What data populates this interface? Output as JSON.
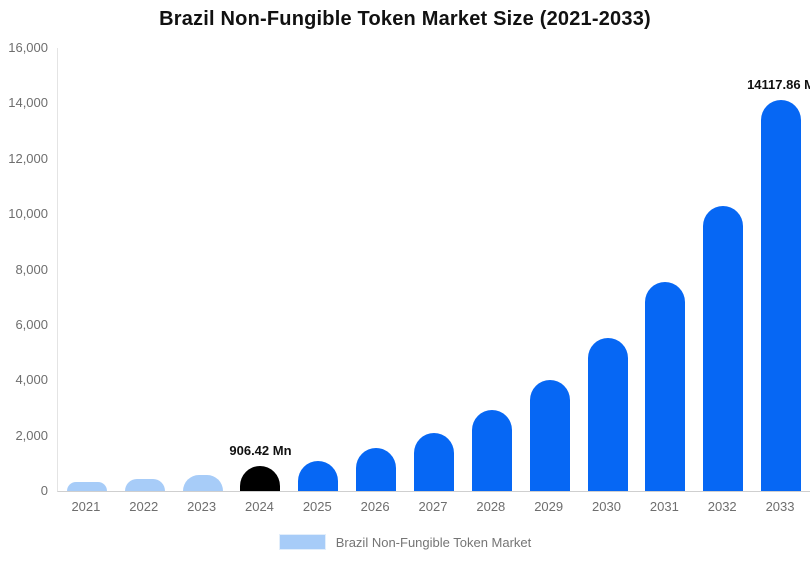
{
  "chart_data": {
    "type": "bar",
    "title": "Brazil Non-Fungible Token Market Size (2021-2033)",
    "unit": "Mn",
    "categories": [
      "2021",
      "2022",
      "2023",
      "2024",
      "2025",
      "2026",
      "2027",
      "2028",
      "2029",
      "2030",
      "2031",
      "2032",
      "2033"
    ],
    "values": [
      320,
      430,
      565,
      906.42,
      1100,
      1540,
      2100,
      2930,
      4010,
      5520,
      7540,
      10290,
      14117.86
    ],
    "point_labels": [
      null,
      null,
      null,
      "906.42 Mn",
      null,
      null,
      null,
      null,
      null,
      null,
      null,
      null,
      "14117.86 M"
    ],
    "bar_colors": [
      "#A7CCF8",
      "#A7CCF8",
      "#A7CCF8",
      "#000000",
      "#0667F4",
      "#0667F4",
      "#0667F4",
      "#0667F4",
      "#0667F4",
      "#0667F4",
      "#0667F4",
      "#0667F4",
      "#0667F4"
    ],
    "xlabel": "",
    "ylabel": "",
    "ylim": [
      0,
      16000
    ],
    "y_ticks": [
      0,
      2000,
      4000,
      6000,
      8000,
      10000,
      12000,
      14000,
      16000
    ],
    "y_tick_labels": [
      "0",
      "2,000",
      "4,000",
      "6,000",
      "8,000",
      "10,000",
      "12,000",
      "14,000",
      "16,000"
    ],
    "grid": false,
    "legend": {
      "label": "Brazil Non-Fungible Token Market",
      "swatch_color": "#A7CCF8",
      "position": "bottom-center"
    },
    "colors": {
      "primary_blue": "#0667F4",
      "light_blue": "#A7CCF8",
      "highlight_black": "#000000",
      "axis_text": "#6E6E6E",
      "title_text": "#111111",
      "legend_text": "#757575"
    }
  }
}
